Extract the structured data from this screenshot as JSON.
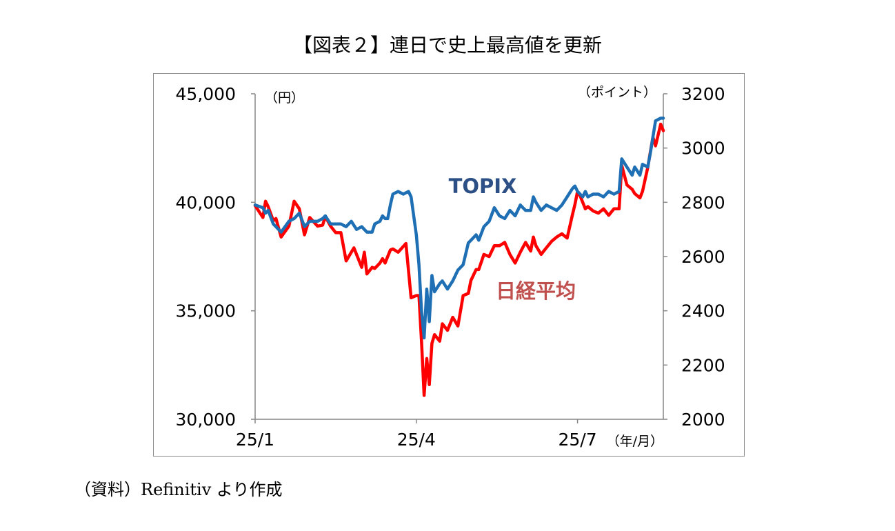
{
  "title": "【図表２】連日で史上最高値を更新",
  "source": "（資料）Refinitiv より作成",
  "chart_data": {
    "type": "line",
    "left_axis": {
      "unit": "（円）",
      "min": 30000,
      "max": 45000,
      "ticks": [
        "30,000",
        "35,000",
        "40,000",
        "45,000"
      ],
      "tick_values": [
        30000,
        35000,
        40000,
        45000
      ]
    },
    "right_axis": {
      "unit": "（ポイント）",
      "min": 2000,
      "max": 3200,
      "ticks": [
        "2000",
        "2200",
        "2400",
        "2600",
        "2800",
        "3000",
        "3200"
      ],
      "tick_values": [
        2000,
        2200,
        2400,
        2600,
        2800,
        3000,
        3200
      ]
    },
    "x_axis": {
      "unit": "（年/月）",
      "ticks": [
        "25/1",
        "25/4",
        "25/7"
      ],
      "tick_positions": [
        0,
        62,
        124
      ],
      "n_points": 158
    },
    "series": [
      {
        "name": "日経平均",
        "axis": "left",
        "color": "#ff0000",
        "label_color": "#c0504d",
        "x": [
          0,
          3,
          4,
          5,
          7,
          8,
          10,
          13,
          15,
          17,
          19,
          21,
          24,
          26,
          27,
          29,
          31,
          33,
          35,
          38,
          41,
          42,
          43,
          45,
          46,
          48,
          49,
          50,
          52,
          53,
          55,
          58,
          60,
          62,
          63,
          64,
          65,
          66,
          67,
          68,
          69,
          71,
          72,
          74,
          76,
          78,
          80,
          82,
          83,
          85,
          86,
          88,
          90,
          92,
          94,
          96,
          98,
          100,
          102,
          104,
          106,
          107,
          108,
          110,
          112,
          114,
          116,
          118,
          120,
          122,
          123,
          124,
          125,
          126,
          127,
          128,
          130,
          132,
          134,
          136,
          138,
          140,
          141,
          143,
          145,
          146,
          148,
          149,
          151,
          152,
          153,
          154,
          156,
          157
        ],
        "y": [
          39850,
          39300,
          40050,
          39800,
          39150,
          39250,
          38400,
          38900,
          40050,
          39700,
          38500,
          39300,
          38900,
          38950,
          39350,
          38900,
          38600,
          38600,
          37300,
          37900,
          37000,
          37700,
          36700,
          37000,
          36950,
          37200,
          37400,
          37200,
          37800,
          37850,
          37700,
          38100,
          35600,
          35700,
          35700,
          33600,
          31100,
          32800,
          31600,
          33500,
          33900,
          33600,
          34400,
          34100,
          34700,
          34300,
          35700,
          35800,
          36400,
          36900,
          36900,
          37600,
          37500,
          38000,
          38000,
          38150,
          37600,
          37200,
          37700,
          38150,
          37750,
          38400,
          38000,
          37600,
          37900,
          38200,
          38400,
          38550,
          38350,
          39400,
          39900,
          40500,
          40300,
          40000,
          39700,
          39800,
          39600,
          39500,
          39700,
          39400,
          39700,
          39700,
          41700,
          40800,
          40600,
          40400,
          40200,
          40500,
          41600,
          42300,
          43000,
          42600,
          43600,
          43300
        ]
      },
      {
        "name": "TOPIX",
        "axis": "right",
        "color": "#1f6fb4",
        "label_color": "#2c4f85",
        "x": [
          0,
          3,
          4,
          5,
          7,
          8,
          10,
          13,
          15,
          17,
          19,
          21,
          24,
          26,
          27,
          29,
          31,
          33,
          35,
          37,
          39,
          41,
          42,
          43,
          45,
          46,
          48,
          49,
          50,
          51,
          52,
          53,
          55,
          57,
          59,
          60,
          62,
          63,
          64,
          65,
          66,
          67,
          68,
          69,
          71,
          72,
          74,
          76,
          78,
          80,
          82,
          83,
          85,
          86,
          88,
          90,
          92,
          94,
          96,
          98,
          100,
          102,
          104,
          106,
          107,
          108,
          110,
          112,
          114,
          116,
          118,
          120,
          122,
          123,
          124,
          125,
          126,
          127,
          128,
          130,
          132,
          134,
          136,
          138,
          140,
          141,
          143,
          145,
          146,
          148,
          149,
          151,
          152,
          153,
          154,
          156,
          157
        ],
        "y": [
          2790,
          2780,
          2760,
          2770,
          2720,
          2710,
          2690,
          2730,
          2740,
          2760,
          2710,
          2730,
          2730,
          2740,
          2750,
          2720,
          2720,
          2720,
          2710,
          2730,
          2700,
          2710,
          2700,
          2690,
          2690,
          2720,
          2730,
          2750,
          2740,
          2740,
          2790,
          2830,
          2840,
          2830,
          2840,
          2820,
          2680,
          2570,
          2400,
          2300,
          2480,
          2360,
          2530,
          2470,
          2500,
          2510,
          2480,
          2510,
          2550,
          2570,
          2650,
          2660,
          2680,
          2660,
          2710,
          2730,
          2780,
          2750,
          2740,
          2770,
          2750,
          2790,
          2770,
          2770,
          2820,
          2800,
          2770,
          2790,
          2780,
          2770,
          2790,
          2820,
          2850,
          2860,
          2840,
          2830,
          2820,
          2840,
          2820,
          2830,
          2830,
          2820,
          2840,
          2830,
          2840,
          2960,
          2930,
          2900,
          2930,
          2900,
          2940,
          2930,
          2980,
          3040,
          3100,
          3110,
          3110
        ]
      }
    ],
    "annotations": [
      {
        "text": "TOPIX",
        "series": "TOPIX"
      },
      {
        "text": "日経平均",
        "series": "日経平均"
      }
    ]
  }
}
